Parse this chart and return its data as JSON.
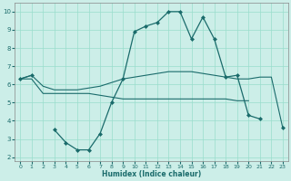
{
  "xlabel": "Humidex (Indice chaleur)",
  "background_color": "#cceee8",
  "grid_color": "#99ddcc",
  "line_color": "#1a6b6b",
  "x_values": [
    0,
    1,
    2,
    3,
    4,
    5,
    6,
    7,
    8,
    9,
    10,
    11,
    12,
    13,
    14,
    15,
    16,
    17,
    18,
    19,
    20,
    21,
    22,
    23
  ],
  "line_jagged": [
    6.3,
    6.5,
    null,
    3.5,
    2.8,
    2.4,
    2.4,
    3.3,
    5.0,
    6.3,
    8.9,
    9.2,
    9.4,
    10.0,
    10.0,
    8.5,
    9.7,
    8.5,
    6.4,
    6.5,
    4.3,
    4.1,
    null,
    3.6
  ],
  "line_upper": [
    6.3,
    6.5,
    5.9,
    5.7,
    5.7,
    5.7,
    5.8,
    5.9,
    6.1,
    6.3,
    6.4,
    6.5,
    6.6,
    6.7,
    6.7,
    6.7,
    6.6,
    6.5,
    6.4,
    6.3,
    6.3,
    6.4,
    6.4,
    3.6
  ],
  "line_lower": [
    6.3,
    6.3,
    5.5,
    5.5,
    5.5,
    5.5,
    5.5,
    5.4,
    5.3,
    5.2,
    5.2,
    5.2,
    5.2,
    5.2,
    5.2,
    5.2,
    5.2,
    5.2,
    5.2,
    5.1,
    5.1,
    null,
    null,
    3.6
  ],
  "ylim": [
    1.8,
    10.5
  ],
  "xlim": [
    -0.5,
    23.5
  ],
  "yticks": [
    2,
    3,
    4,
    5,
    6,
    7,
    8,
    9,
    10
  ],
  "xticks": [
    0,
    1,
    2,
    3,
    4,
    5,
    6,
    7,
    8,
    9,
    10,
    11,
    12,
    13,
    14,
    15,
    16,
    17,
    18,
    19,
    20,
    21,
    22,
    23
  ]
}
